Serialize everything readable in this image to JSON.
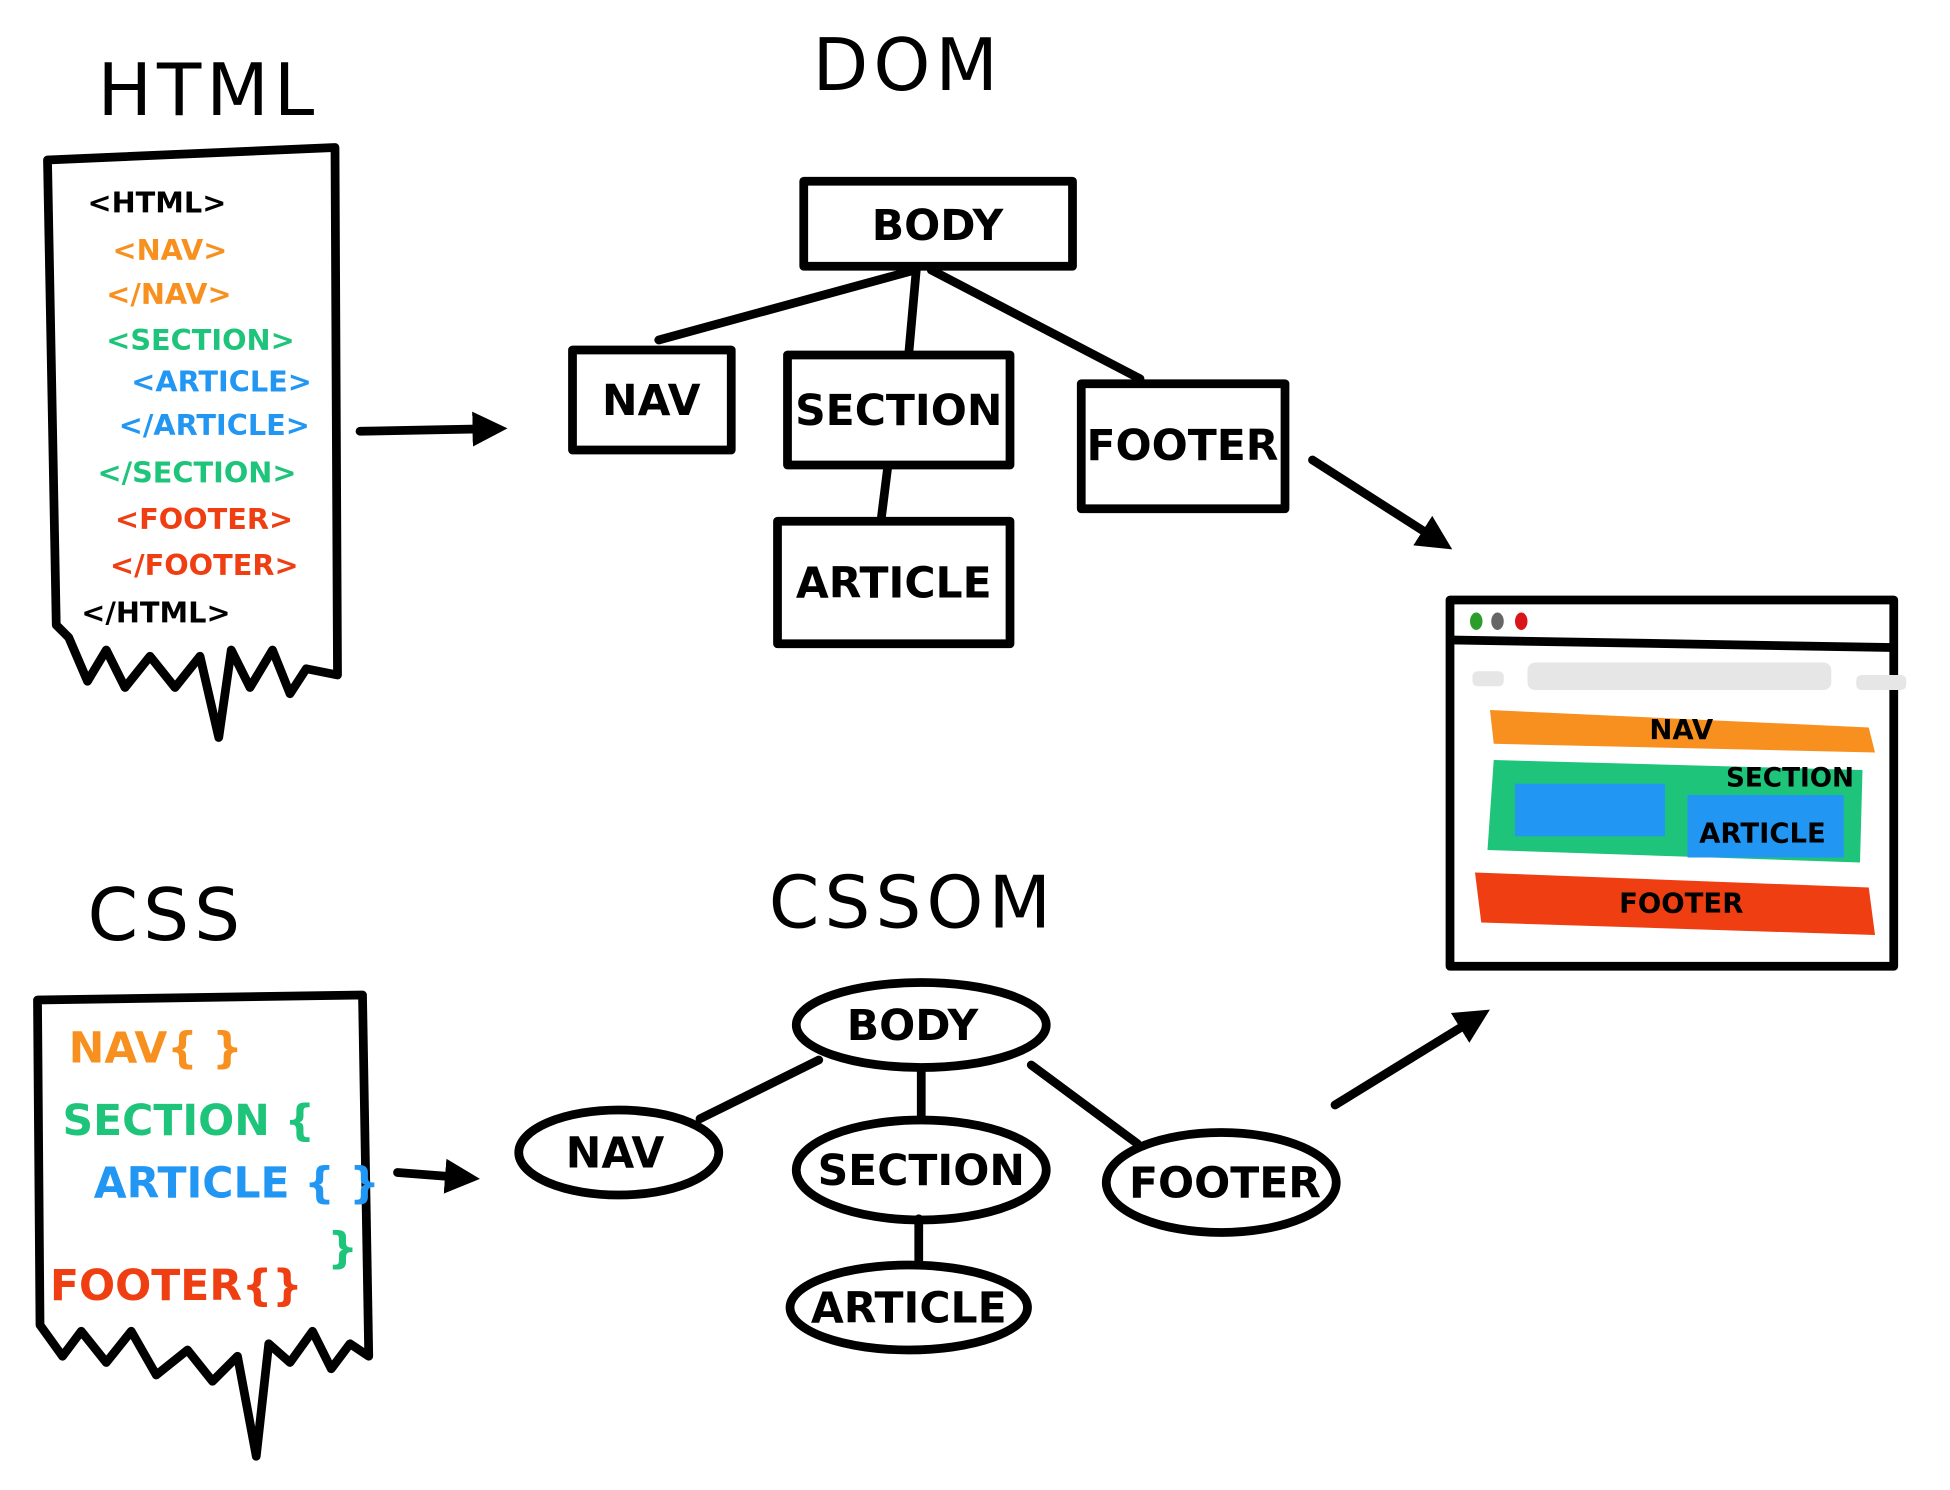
{
  "titles": {
    "html": "HTML",
    "dom": "DOM",
    "css": "CSS",
    "cssom": "CSSOM"
  },
  "colors": {
    "nav": "#f7901e",
    "section": "#1dc47a",
    "article": "#2196f3",
    "footer": "#ee3e12",
    "ink": "#000000"
  },
  "html_code": [
    {
      "text": "<HTML>",
      "role": "html"
    },
    {
      "text": "<NAV>",
      "role": "nav"
    },
    {
      "text": "</NAV>",
      "role": "nav"
    },
    {
      "text": "<SECTION>",
      "role": "section"
    },
    {
      "text": "<ARTICLE>",
      "role": "article"
    },
    {
      "text": "</ARTICLE>",
      "role": "article"
    },
    {
      "text": "</SECTION>",
      "role": "section"
    },
    {
      "text": "<FOOTER>",
      "role": "footer"
    },
    {
      "text": "</FOOTER>",
      "role": "footer"
    },
    {
      "text": "</HTML>",
      "role": "html"
    }
  ],
  "css_code": {
    "nav": "NAV{ }",
    "section": "SECTION {",
    "article": "ARTICLE { }",
    "section_close": "}",
    "footer": "FOOTER{}"
  },
  "dom": {
    "body": "BODY",
    "nav": "NAV",
    "section": "SECTION",
    "footer": "FOOTER",
    "article": "ARTICLE"
  },
  "cssom": {
    "body": "BODY",
    "nav": "NAV",
    "section": "SECTION",
    "footer": "FOOTER",
    "article": "ARTICLE"
  },
  "render": {
    "nav": "NAV",
    "section": "SECTION",
    "article": "ARTICLE",
    "footer": "FOOTER"
  }
}
